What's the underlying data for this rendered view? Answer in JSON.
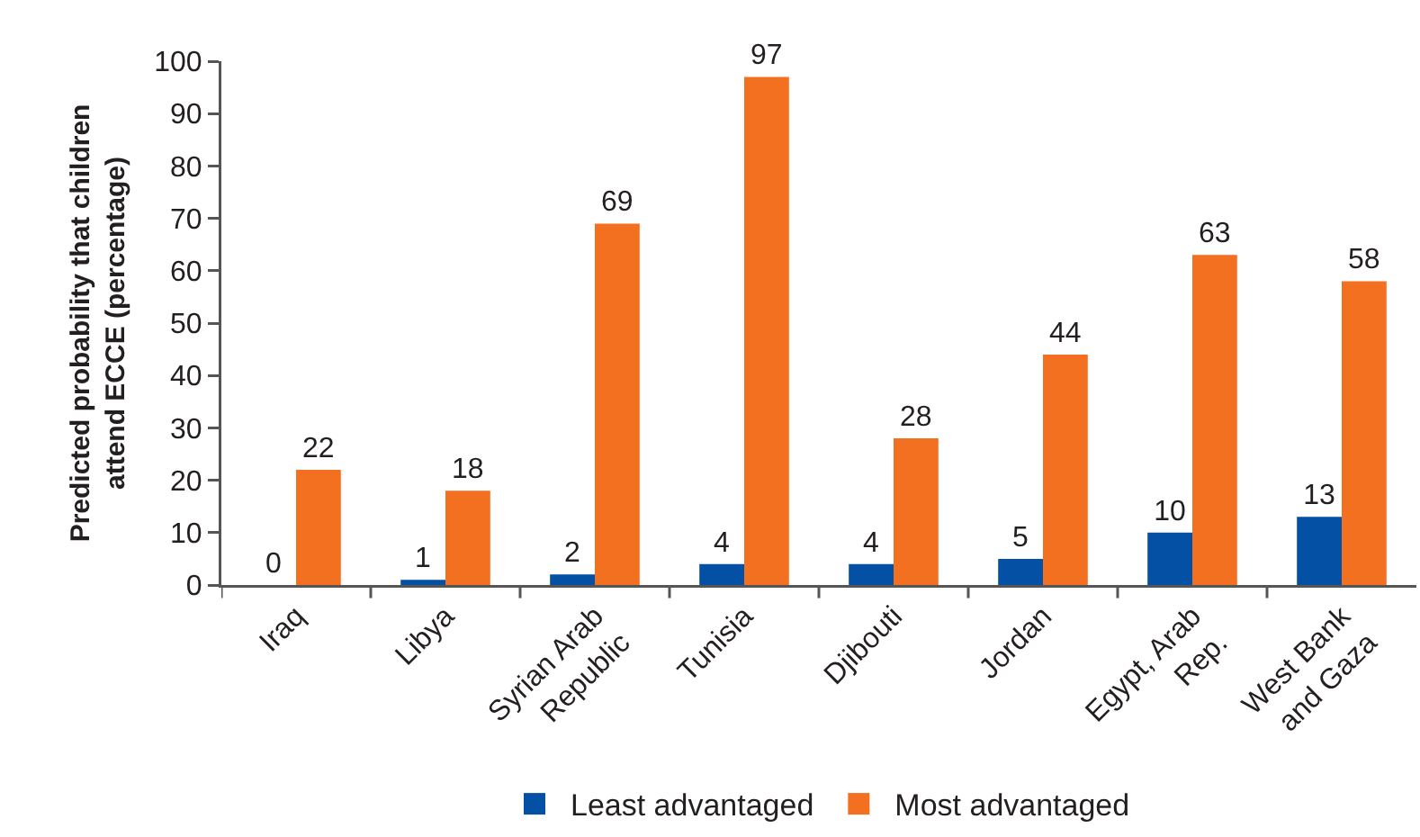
{
  "chart_data": {
    "type": "bar",
    "ylabel": "Predicted probability that children attend ECCE (percentage)",
    "categories": [
      "Iraq",
      "Libya",
      "Syrian Arab Republic",
      "Tunisia",
      "Djibouti",
      "Jordan",
      "Egypt, Arab Rep.",
      "West Bank and Gaza"
    ],
    "series": [
      {
        "name": "Least advantaged",
        "color": "#0450a4",
        "values": [
          0,
          1,
          2,
          4,
          4,
          5,
          10,
          13
        ]
      },
      {
        "name": "Most advantaged",
        "color": "#f37021",
        "values": [
          22,
          18,
          69,
          97,
          28,
          44,
          63,
          58
        ]
      }
    ],
    "ylim": [
      0,
      100
    ],
    "yticks": [
      0,
      10,
      20,
      30,
      40,
      50,
      60,
      70,
      80,
      90,
      100
    ],
    "data_labels": true,
    "legend": "bottom"
  }
}
